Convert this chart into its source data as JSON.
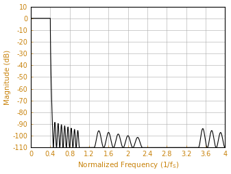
{
  "xlim": [
    0,
    4
  ],
  "ylim": [
    -110,
    10
  ],
  "xticks": [
    0,
    0.4,
    0.8,
    1.2,
    1.6,
    2.0,
    2.4,
    2.8,
    3.2,
    3.6,
    4.0
  ],
  "xtick_labels": [
    "0",
    "0.4",
    "0.8",
    "1.2",
    "1.6",
    "2",
    "2.4",
    "2.8",
    "3.2",
    "3.6",
    "4"
  ],
  "yticks": [
    10,
    0,
    -10,
    -20,
    -30,
    -40,
    -50,
    -60,
    -70,
    -80,
    -90,
    -100,
    -110
  ],
  "ytick_labels": [
    "10",
    "0",
    "-10",
    "-20",
    "-30",
    "-40",
    "-50",
    "-60",
    "-70",
    "-80",
    "-90",
    "-100",
    "-110"
  ],
  "ylabel": "Magnitude (dB)",
  "line_color": "#000000",
  "background_color": "#ffffff",
  "grid_color": "#aaaaaa",
  "label_color": "#c8820a",
  "figsize": [
    3.37,
    2.54
  ],
  "dpi": 100,
  "passband_end": 0.4,
  "transition_end": 0.46,
  "stopband_floor": -110,
  "sidelobe1_start": 0.46,
  "sidelobe1_end": 1.0,
  "sidelobe1_peak": -88,
  "sidelobe2_start": 1.3,
  "sidelobe2_end": 2.3,
  "sidelobe2_peak": -95,
  "sidelobe3_start": 3.45,
  "sidelobe3_end": 4.0,
  "sidelobe3_peak": -93
}
